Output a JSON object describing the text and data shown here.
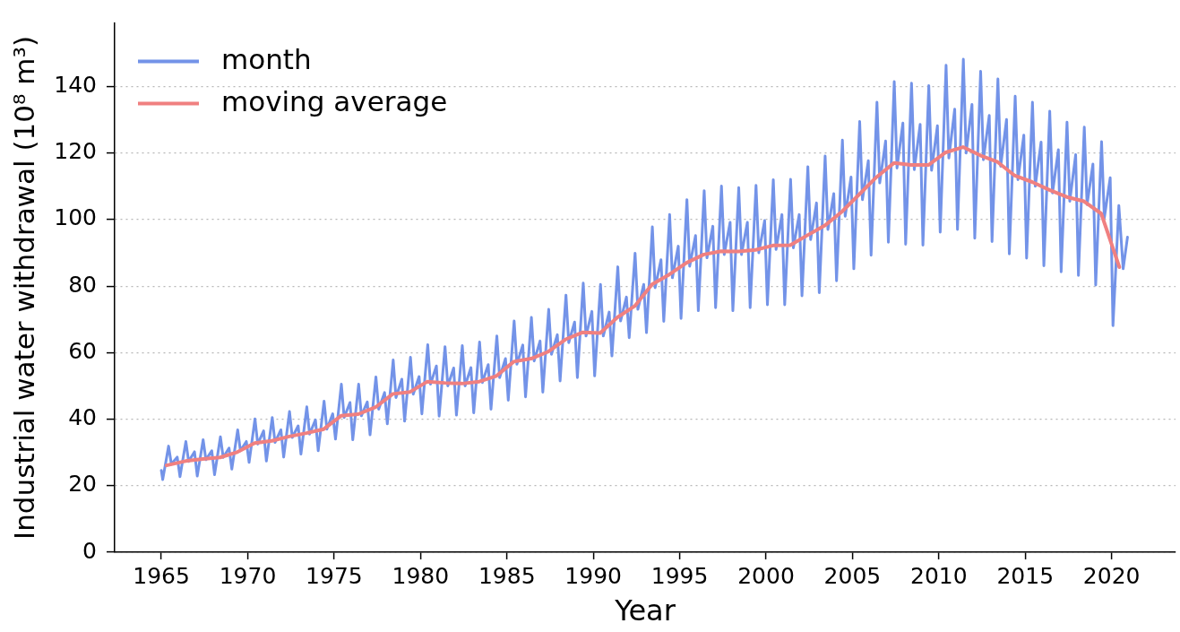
{
  "chart_data": {
    "type": "line",
    "xlabel": "Year",
    "ylabel": "Industrial water withdrawal (10⁸ m³)",
    "xlim": [
      1962.3,
      2023.7
    ],
    "xticks": [
      1965,
      1970,
      1975,
      1980,
      1985,
      1990,
      1995,
      2000,
      2005,
      2010,
      2015,
      2020
    ],
    "ylim": [
      0,
      159
    ],
    "yticks": [
      0,
      20,
      40,
      60,
      80,
      100,
      120,
      140
    ],
    "grid": "y",
    "legend": "top left",
    "series": [
      {
        "name": "month",
        "color": "#7393e8",
        "x": [
          1965.0,
          1965.08,
          1965.42,
          1965.58,
          1965.92,
          1966.08,
          1966.42,
          1966.58,
          1966.92,
          1967.08,
          1967.42,
          1967.58,
          1967.92,
          1968.08,
          1968.42,
          1968.58,
          1968.92,
          1969.08,
          1969.42,
          1969.58,
          1969.92,
          1970.08,
          1970.42,
          1970.58,
          1970.92,
          1971.08,
          1971.42,
          1971.58,
          1971.92,
          1972.08,
          1972.42,
          1972.58,
          1972.92,
          1973.08,
          1973.42,
          1973.58,
          1973.92,
          1974.08,
          1974.42,
          1974.58,
          1974.92,
          1975.08,
          1975.42,
          1975.58,
          1975.92,
          1976.08,
          1976.42,
          1976.58,
          1976.92,
          1977.08,
          1977.42,
          1977.58,
          1977.92,
          1978.08,
          1978.42,
          1978.58,
          1978.92,
          1979.08,
          1979.42,
          1979.58,
          1979.92,
          1980.08,
          1980.42,
          1980.58,
          1980.92,
          1981.08,
          1981.42,
          1981.58,
          1981.92,
          1982.08,
          1982.42,
          1982.58,
          1982.92,
          1983.08,
          1983.42,
          1983.58,
          1983.92,
          1984.08,
          1984.42,
          1984.58,
          1984.92,
          1985.08,
          1985.42,
          1985.58,
          1985.92,
          1986.08,
          1986.42,
          1986.58,
          1986.92,
          1987.08,
          1987.42,
          1987.58,
          1987.92,
          1988.08,
          1988.42,
          1988.58,
          1988.92,
          1989.08,
          1989.42,
          1989.58,
          1989.92,
          1990.08,
          1990.42,
          1990.58,
          1990.92,
          1991.08,
          1991.42,
          1991.58,
          1991.92,
          1992.08,
          1992.42,
          1992.58,
          1992.92,
          1993.08,
          1993.42,
          1993.58,
          1993.92,
          1994.08,
          1994.42,
          1994.58,
          1994.92,
          1995.08,
          1995.42,
          1995.58,
          1995.92,
          1996.08,
          1996.42,
          1996.58,
          1996.92,
          1997.08,
          1997.42,
          1997.58,
          1997.92,
          1998.08,
          1998.42,
          1998.58,
          1998.92,
          1999.08,
          1999.42,
          1999.58,
          1999.92,
          2000.08,
          2000.42,
          2000.58,
          2000.92,
          2001.08,
          2001.42,
          2001.58,
          2001.92,
          2002.08,
          2002.42,
          2002.58,
          2002.92,
          2003.08,
          2003.42,
          2003.58,
          2003.92,
          2004.08,
          2004.42,
          2004.58,
          2004.92,
          2005.08,
          2005.42,
          2005.58,
          2005.92,
          2006.08,
          2006.42,
          2006.58,
          2006.92,
          2007.08,
          2007.42,
          2007.58,
          2007.92,
          2008.08,
          2008.42,
          2008.58,
          2008.92,
          2009.08,
          2009.42,
          2009.58,
          2009.92,
          2010.08,
          2010.42,
          2010.58,
          2010.92,
          2011.08,
          2011.42,
          2011.58,
          2011.92,
          2012.08,
          2012.42,
          2012.58,
          2012.92,
          2013.08,
          2013.42,
          2013.58,
          2013.92,
          2014.08,
          2014.42,
          2014.58,
          2014.92,
          2015.08,
          2015.42,
          2015.58,
          2015.92,
          2016.08,
          2016.42,
          2016.58,
          2016.92,
          2017.08,
          2017.42,
          2017.58,
          2017.92,
          2018.08,
          2018.42,
          2018.58,
          2018.92,
          2019.08,
          2019.42,
          2019.58,
          2019.92,
          2020.08,
          2020.42,
          2020.67,
          2020.92
        ],
        "values": [
          24.6,
          21.8,
          31.9,
          26.5,
          28.6,
          22.7,
          33.3,
          27.3,
          30.2,
          22.9,
          33.8,
          27.8,
          30.5,
          23.3,
          34.7,
          28.5,
          31.3,
          25.0,
          36.8,
          30.5,
          33.3,
          27.0,
          40.1,
          32.5,
          36.5,
          27.4,
          40.5,
          33.0,
          36.8,
          28.6,
          42.3,
          34.5,
          38.0,
          29.5,
          43.7,
          35.5,
          39.8,
          30.5,
          45.4,
          37.0,
          41.6,
          34.0,
          50.5,
          40.5,
          45.0,
          33.8,
          50.5,
          41.0,
          45.2,
          35.3,
          52.7,
          43.0,
          48.0,
          38.6,
          57.8,
          46.5,
          52.0,
          39.4,
          58.6,
          47.5,
          52.8,
          41.6,
          62.4,
          50.5,
          56.0,
          40.9,
          61.8,
          50.0,
          55.4,
          41.2,
          62.1,
          50.0,
          55.5,
          41.9,
          63.2,
          51.0,
          56.4,
          43.0,
          65.0,
          52.5,
          58.2,
          45.7,
          69.5,
          56.5,
          62.3,
          46.7,
          70.6,
          57.5,
          63.5,
          48.1,
          73.0,
          59.5,
          65.4,
          51.5,
          77.3,
          63.0,
          69.2,
          52.5,
          80.9,
          65.0,
          72.4,
          53.0,
          80.5,
          65.0,
          72.2,
          59.0,
          85.8,
          69.5,
          76.7,
          64.5,
          89.9,
          73.0,
          80.5,
          66.0,
          97.8,
          79.5,
          87.9,
          69.4,
          101.5,
          82.5,
          92.0,
          70.3,
          106.0,
          86.0,
          95.2,
          72.6,
          108.7,
          88.5,
          98.0,
          73.5,
          110.1,
          89.5,
          99.2,
          72.6,
          109.6,
          89.5,
          99.2,
          73.5,
          110.3,
          90.0,
          99.7,
          74.4,
          112.0,
          91.0,
          101.5,
          74.4,
          112.1,
          91.5,
          101.5,
          77.1,
          115.9,
          94.0,
          105.0,
          78.0,
          119.1,
          97.0,
          107.8,
          81.6,
          123.9,
          101.0,
          112.8,
          85.2,
          129.5,
          106.0,
          117.7,
          89.3,
          135.3,
          111.0,
          123.6,
          93.2,
          141.5,
          115.5,
          129.0,
          92.6,
          141.0,
          115.0,
          128.6,
          92.3,
          140.3,
          114.8,
          128.2,
          96.2,
          146.4,
          118.5,
          133.2,
          97.0,
          148.2,
          120.0,
          134.6,
          94.4,
          144.6,
          118.0,
          131.3,
          93.4,
          142.3,
          116.0,
          130.1,
          89.7,
          137.1,
          112.0,
          125.4,
          88.4,
          135.3,
          110.0,
          123.3,
          86.1,
          132.6,
          108.0,
          121.0,
          84.3,
          129.3,
          105.5,
          119.5,
          83.2,
          127.8,
          104.5,
          116.7,
          80.3,
          123.4,
          100.5,
          112.6,
          68.1,
          104.2,
          85.2,
          94.7
        ]
      },
      {
        "name": "moving average",
        "color": "#f08080",
        "x": [
          1965.3,
          1966.4,
          1967.4,
          1968.4,
          1969.4,
          1970.4,
          1971.4,
          1972.4,
          1973.4,
          1974.4,
          1975.4,
          1976.4,
          1977.4,
          1978.4,
          1979.4,
          1980.4,
          1981.4,
          1982.4,
          1983.4,
          1984.4,
          1985.4,
          1986.4,
          1987.4,
          1988.4,
          1989.4,
          1990.4,
          1991.4,
          1992.4,
          1993.4,
          1994.4,
          1995.4,
          1996.4,
          1997.4,
          1998.4,
          1999.4,
          2000.4,
          2001.4,
          2002.4,
          2003.4,
          2004.4,
          2005.4,
          2006.4,
          2007.4,
          2008.4,
          2009.4,
          2010.4,
          2011.4,
          2012.4,
          2013.4,
          2014.4,
          2015.4,
          2016.4,
          2017.4,
          2018.4,
          2019.4,
          2020.45
        ],
        "values": [
          26.1,
          27.4,
          28.0,
          28.5,
          30.1,
          32.8,
          33.5,
          34.8,
          35.8,
          37.0,
          41.0,
          41.5,
          43.6,
          47.6,
          48.2,
          51.3,
          50.9,
          50.7,
          51.3,
          53.0,
          57.3,
          58.2,
          60.3,
          64.0,
          66.1,
          65.9,
          70.6,
          74.0,
          80.5,
          83.5,
          87.0,
          89.5,
          90.5,
          90.4,
          90.9,
          92.2,
          92.3,
          95.3,
          98.2,
          102.4,
          107.6,
          112.8,
          117.0,
          116.4,
          116.4,
          120.2,
          121.8,
          119.3,
          117.3,
          113.2,
          111.3,
          108.9,
          106.8,
          105.5,
          101.8,
          85.7
        ]
      }
    ]
  }
}
